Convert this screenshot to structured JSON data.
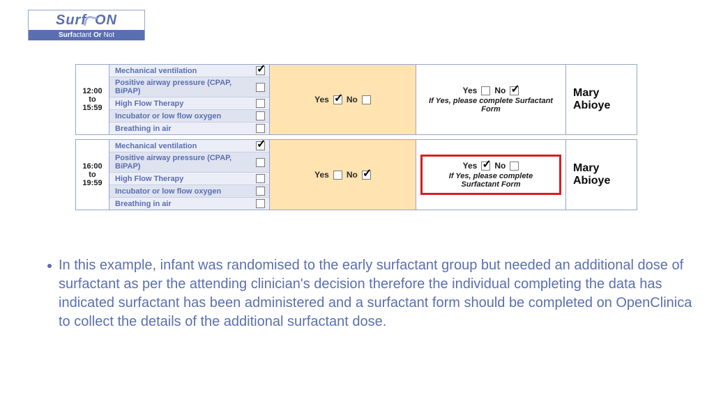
{
  "logo": {
    "top_left": "Surf",
    "top_right": "ON",
    "bottom_html": "Surf<n>actant</n> Or <n>Not</n>",
    "bottom_b1": "Surf",
    "bottom_t1": "actant ",
    "bottom_b2": "Or ",
    "bottom_t2": "Not"
  },
  "vent_labels": [
    "Mechanical ventilation",
    "Positive airway pressure (CPAP, BiPAP)",
    "High Flow Therapy",
    "Incubator or low flow oxygen",
    "Breathing in air"
  ],
  "yn": {
    "yes": "Yes",
    "no": "No"
  },
  "surf_note": "If Yes, please complete Surfactant Form",
  "rows": [
    {
      "time_from": "12:00",
      "time_to_word": "to",
      "time_to": "15:59",
      "vent_checked": [
        true,
        false,
        false,
        false,
        false
      ],
      "yn_yes": true,
      "yn_no": false,
      "surf_yes": false,
      "surf_no": true,
      "surf_hilite": false,
      "name": "Mary Abioye"
    },
    {
      "time_from": "16:00",
      "time_to_word": "to",
      "time_to": "19:59",
      "vent_checked": [
        true,
        false,
        false,
        false,
        false
      ],
      "yn_yes": false,
      "yn_no": true,
      "surf_yes": true,
      "surf_no": false,
      "surf_hilite": true,
      "name": "Mary Abioye"
    }
  ],
  "paragraph": "In this example, infant was randomised to the early surfactant group but needed an additional dose of surfactant as per the attending clinician's decision therefore the individual completing the data has indicated surfactant has been administered and a surfactant form should be completed on OpenClinica to collect the details of the additional surfactant dose.",
  "colors": {
    "brand": "#5a6fb0",
    "border": "#98a6c9",
    "row_odd": "#eceef7",
    "row_even": "#dfe3f0",
    "yn_bg": "#ffe3b0",
    "hilite": "#d32020",
    "text": "#1a1a1a"
  }
}
